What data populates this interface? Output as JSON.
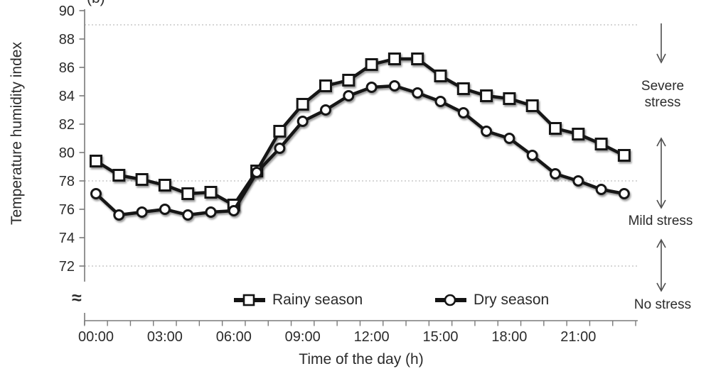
{
  "figure": {
    "panel_label": "(b)"
  },
  "colors": {
    "series_line": "#141414",
    "marker_fill": "#ffffff",
    "axis": "#7a7a7a",
    "grid": "#bdbdbd",
    "text": "#2b2b2b",
    "arrow": "#4d4d4d"
  },
  "chart_data": {
    "type": "line",
    "title": "",
    "xlabel": "Time of the day (h)",
    "ylabel": "Temperature humidity index",
    "y_axis_break_symbol": "≈",
    "ylim": [
      72,
      90
    ],
    "grid": "dashed horizontal threshold lines",
    "dashed_gridlines_at": [
      89,
      78,
      72
    ],
    "y_ticks": [
      {
        "value": 90,
        "label": "90"
      },
      {
        "value": 88,
        "label": "88"
      },
      {
        "value": 86,
        "label": "86"
      },
      {
        "value": 84,
        "label": "84"
      },
      {
        "value": 82,
        "label": "82"
      },
      {
        "value": 80,
        "label": "80"
      },
      {
        "value": 78,
        "label": "78"
      },
      {
        "value": 76,
        "label": "76"
      },
      {
        "value": 74,
        "label": "74"
      },
      {
        "value": 72,
        "label": "72"
      }
    ],
    "x_hours_range": [
      0,
      23
    ],
    "x_ticks": [
      {
        "hour": 0,
        "label": "00:00"
      },
      {
        "hour": 3,
        "label": "03:00"
      },
      {
        "hour": 6,
        "label": "06:00"
      },
      {
        "hour": 9,
        "label": "09:00"
      },
      {
        "hour": 12,
        "label": "12:00"
      },
      {
        "hour": 15,
        "label": "15:00"
      },
      {
        "hour": 18,
        "label": "18:00"
      },
      {
        "hour": 21,
        "label": "21:00"
      }
    ],
    "legend_position": "bottom-inside",
    "series": [
      {
        "name": "Rainy season",
        "marker": "square",
        "values": [
          79.4,
          78.4,
          78.1,
          77.7,
          77.1,
          77.2,
          76.3,
          78.7,
          81.5,
          83.4,
          84.7,
          85.1,
          86.2,
          86.6,
          86.6,
          85.4,
          84.5,
          84.0,
          83.8,
          83.3,
          81.7,
          81.3,
          80.6,
          79.8
        ]
      },
      {
        "name": "Dry season",
        "marker": "circle",
        "values": [
          77.1,
          75.6,
          75.8,
          76.0,
          75.6,
          75.8,
          75.9,
          78.6,
          80.3,
          82.2,
          83.0,
          84.0,
          84.6,
          84.7,
          84.2,
          83.6,
          82.8,
          81.5,
          81.0,
          79.8,
          78.5,
          78.0,
          77.4,
          77.1
        ]
      }
    ],
    "annotations": {
      "severe": "Severe stress",
      "mild": "Mild stress",
      "none": "No stress"
    }
  }
}
